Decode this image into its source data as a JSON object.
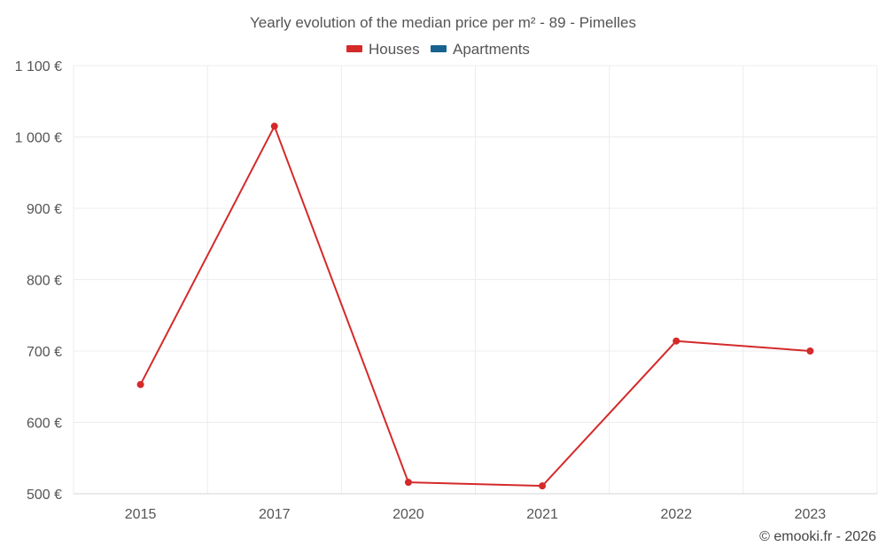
{
  "chart_data": {
    "type": "line",
    "title": "Yearly evolution of the median price per m² - 89 - Pimelles",
    "categories": [
      "2015",
      "2017",
      "2020",
      "2021",
      "2022",
      "2023"
    ],
    "series": [
      {
        "name": "Houses",
        "color": "#d42a2a",
        "values": [
          653,
          1015,
          516,
          511,
          714,
          700
        ]
      },
      {
        "name": "Apartments",
        "color": "#17638f",
        "values": [
          null,
          null,
          null,
          null,
          null,
          null
        ]
      }
    ],
    "yticks": [
      "500 €",
      "600 €",
      "700 €",
      "800 €",
      "900 €",
      "1 000 €",
      "1 100 €"
    ],
    "ylim": [
      500,
      1100
    ],
    "ytick_values": [
      500,
      600,
      700,
      800,
      900,
      1000,
      1100
    ],
    "xlabel": "",
    "ylabel": "",
    "legend": "top-center",
    "grid": true
  },
  "credit": "© emooki.fr - 2026"
}
